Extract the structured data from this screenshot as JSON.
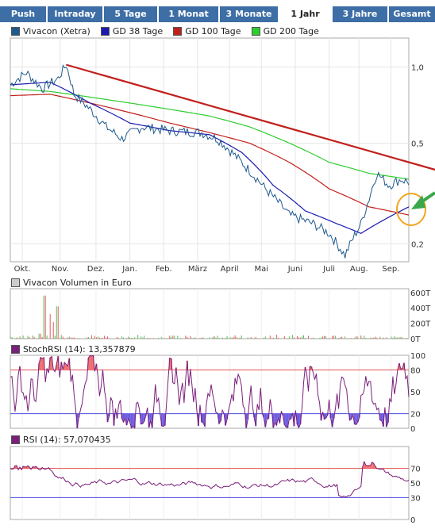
{
  "tabs": [
    {
      "label": "Push",
      "active": false
    },
    {
      "label": "Intraday",
      "active": false
    },
    {
      "label": "5 Tage",
      "active": false
    },
    {
      "label": "1 Monat",
      "active": false
    },
    {
      "label": "3 Monate",
      "active": false
    },
    {
      "label": "1 Jahr",
      "active": true
    },
    {
      "label": "3 Jahre",
      "active": false
    },
    {
      "label": "Gesamt",
      "active": false
    }
  ],
  "colors": {
    "tab_bg": "#3d6ea5",
    "price": "#1f5a8c",
    "gd38": "#1a1ab0",
    "gd100": "#c0201c",
    "gd200": "#2ecc2e",
    "trend": "#c0201c",
    "arrow": "#3aa84a",
    "circle": "#f2a51a",
    "stoch": "#7a1f7a",
    "fill_hi": "#f06a6a",
    "fill_lo": "#6a5ae0",
    "ref_hi": "#e05050",
    "ref_lo": "#4a4ae0"
  },
  "chart_data": [
    {
      "type": "line",
      "panel": "price",
      "series": [
        {
          "name": "Vivacon (Xetra)",
          "color": "#1f5a8c"
        },
        {
          "name": "GD 38 Tage",
          "color": "#1a1ab0"
        },
        {
          "name": "GD 100 Tage",
          "color": "#c0201c"
        },
        {
          "name": "GD 200 Tage",
          "color": "#2ecc2e"
        }
      ],
      "x_ticks": [
        "Okt.",
        "Nov.",
        "Dez.",
        "Jan.",
        "Feb.",
        "März",
        "April",
        "Mai",
        "Juni",
        "Juli",
        "Aug.",
        "Sep."
      ],
      "y_ticks": [
        "1,0",
        "0,5",
        "0,2"
      ],
      "y_scale": "log",
      "ylim": [
        0.17,
        1.3
      ],
      "price_keypoints": [
        [
          0,
          0.85
        ],
        [
          0.04,
          0.95
        ],
        [
          0.08,
          0.82
        ],
        [
          0.12,
          0.9
        ],
        [
          0.14,
          1.02
        ],
        [
          0.16,
          0.78
        ],
        [
          0.2,
          0.68
        ],
        [
          0.24,
          0.58
        ],
        [
          0.28,
          0.52
        ],
        [
          0.33,
          0.58
        ],
        [
          0.4,
          0.56
        ],
        [
          0.48,
          0.55
        ],
        [
          0.52,
          0.52
        ],
        [
          0.58,
          0.42
        ],
        [
          0.64,
          0.33
        ],
        [
          0.7,
          0.26
        ],
        [
          0.76,
          0.24
        ],
        [
          0.8,
          0.22
        ],
        [
          0.84,
          0.18
        ],
        [
          0.88,
          0.24
        ],
        [
          0.9,
          0.3
        ],
        [
          0.92,
          0.38
        ],
        [
          0.95,
          0.34
        ],
        [
          0.98,
          0.36
        ],
        [
          1.0,
          0.35
        ]
      ],
      "gd38_keypoints": [
        [
          0,
          0.85
        ],
        [
          0.1,
          0.87
        ],
        [
          0.2,
          0.72
        ],
        [
          0.3,
          0.6
        ],
        [
          0.4,
          0.56
        ],
        [
          0.5,
          0.54
        ],
        [
          0.58,
          0.46
        ],
        [
          0.66,
          0.34
        ],
        [
          0.74,
          0.27
        ],
        [
          0.82,
          0.24
        ],
        [
          0.88,
          0.22
        ],
        [
          0.94,
          0.25
        ],
        [
          1.0,
          0.28
        ]
      ],
      "gd100_keypoints": [
        [
          0,
          0.77
        ],
        [
          0.1,
          0.78
        ],
        [
          0.2,
          0.72
        ],
        [
          0.3,
          0.66
        ],
        [
          0.4,
          0.6
        ],
        [
          0.5,
          0.55
        ],
        [
          0.6,
          0.5
        ],
        [
          0.7,
          0.42
        ],
        [
          0.8,
          0.33
        ],
        [
          0.9,
          0.28
        ],
        [
          1.0,
          0.26
        ]
      ],
      "gd200_keypoints": [
        [
          0,
          0.82
        ],
        [
          0.1,
          0.8
        ],
        [
          0.2,
          0.76
        ],
        [
          0.3,
          0.72
        ],
        [
          0.4,
          0.68
        ],
        [
          0.5,
          0.64
        ],
        [
          0.6,
          0.58
        ],
        [
          0.7,
          0.5
        ],
        [
          0.8,
          0.42
        ],
        [
          0.9,
          0.38
        ],
        [
          1.0,
          0.36
        ]
      ],
      "trendline": [
        [
          0.14,
          1.02
        ],
        [
          1.15,
          0.36
        ]
      ]
    },
    {
      "type": "bar",
      "panel": "volume",
      "title": "Vivacon Volumen in Euro",
      "y_ticks": [
        "600T",
        "400T",
        "200T",
        "0T"
      ],
      "ylim": [
        0,
        650
      ]
    },
    {
      "type": "line",
      "panel": "stochrsi",
      "title": "StochRSI (14): 13,357879",
      "y_ticks": [
        "100",
        "80",
        "50",
        "20",
        "0"
      ],
      "ylim": [
        0,
        100
      ],
      "reference_lines": [
        80,
        20
      ]
    },
    {
      "type": "line",
      "panel": "rsi",
      "title": "RSI (14): 57,070435",
      "y_ticks": [
        "70",
        "50",
        "30",
        "0"
      ],
      "ylim": [
        0,
        100
      ],
      "reference_lines": [
        70,
        30
      ]
    }
  ]
}
